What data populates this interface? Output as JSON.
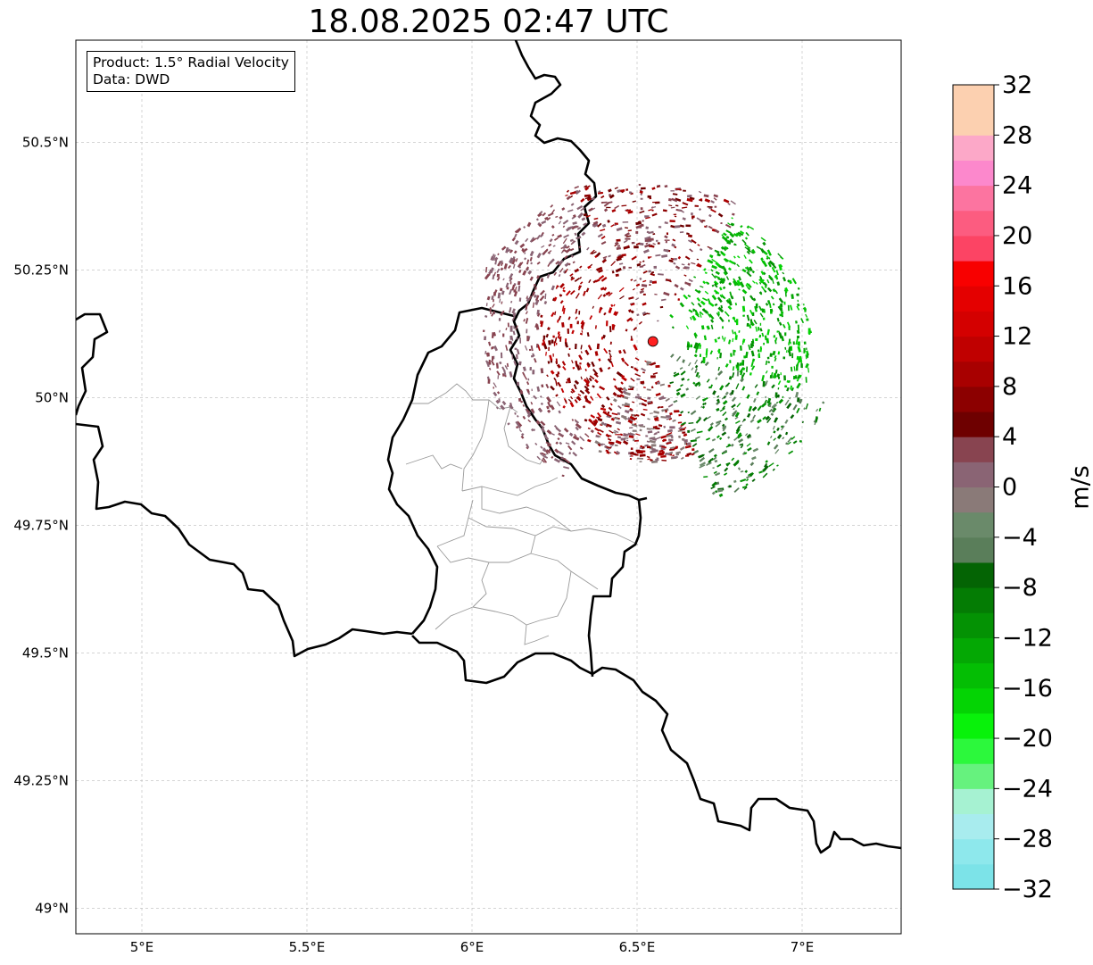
{
  "title": "18.08.2025 02:47 UTC",
  "info": {
    "product_line": "Product: 1.5° Radial Velocity",
    "data_line": "Data: DWD"
  },
  "map": {
    "lon_range": [
      4.8,
      7.3
    ],
    "lat_range": [
      48.95,
      50.7
    ],
    "lon_ticks": [
      {
        "value": 5.0,
        "label": "5°E"
      },
      {
        "value": 5.5,
        "label": "5.5°E"
      },
      {
        "value": 6.0,
        "label": "6°E"
      },
      {
        "value": 6.5,
        "label": "6.5°E"
      },
      {
        "value": 7.0,
        "label": "7°E"
      }
    ],
    "lat_ticks": [
      {
        "value": 49.0,
        "label": "49°N"
      },
      {
        "value": 49.25,
        "label": "49.25°N"
      },
      {
        "value": 49.5,
        "label": "49.5°N"
      },
      {
        "value": 49.75,
        "label": "49.75°N"
      },
      {
        "value": 50.0,
        "label": "50°N"
      },
      {
        "value": 50.25,
        "label": "50.25°N"
      },
      {
        "value": 50.5,
        "label": "50.5°N"
      }
    ],
    "gridlines": true,
    "radar_site": {
      "lon": 6.548,
      "lat": 50.11
    },
    "site_color": "#ff2020"
  },
  "colorbar": {
    "unit": "m/s",
    "min": -32,
    "max": 32,
    "ticks": [
      {
        "value": 32,
        "label": "32"
      },
      {
        "value": 28,
        "label": "28"
      },
      {
        "value": 24,
        "label": "24"
      },
      {
        "value": 20,
        "label": "20"
      },
      {
        "value": 16,
        "label": "16"
      },
      {
        "value": 12,
        "label": "12"
      },
      {
        "value": 8,
        "label": "8"
      },
      {
        "value": 4,
        "label": "4"
      },
      {
        "value": 0,
        "label": "0"
      },
      {
        "value": -4,
        "label": "−4"
      },
      {
        "value": -8,
        "label": "−8"
      },
      {
        "value": -12,
        "label": "−12"
      },
      {
        "value": -16,
        "label": "−16"
      },
      {
        "value": -20,
        "label": "−20"
      },
      {
        "value": -24,
        "label": "−24"
      },
      {
        "value": -28,
        "label": "−28"
      },
      {
        "value": -32,
        "label": "−32"
      }
    ],
    "colors_bottom_to_top": [
      "#7ce3e8",
      "#8ee8ec",
      "#a8ecee",
      "#a6f2d2",
      "#66f27e",
      "#2cf83c",
      "#08f20a",
      "#04d404",
      "#04be04",
      "#04a804",
      "#049204",
      "#047c04",
      "#046404",
      "#5a7e5a",
      "#6a8a6a",
      "#8a7a78",
      "#8a6474",
      "#884450",
      "#6e0000",
      "#8c0000",
      "#a80000",
      "#c00000",
      "#d40000",
      "#e40000",
      "#f80000",
      "#fc4464",
      "#fc5c80",
      "#fc74a0",
      "#fc88cc",
      "#fca8c8",
      "#fcd0b0",
      "#fcd0b0"
    ]
  }
}
